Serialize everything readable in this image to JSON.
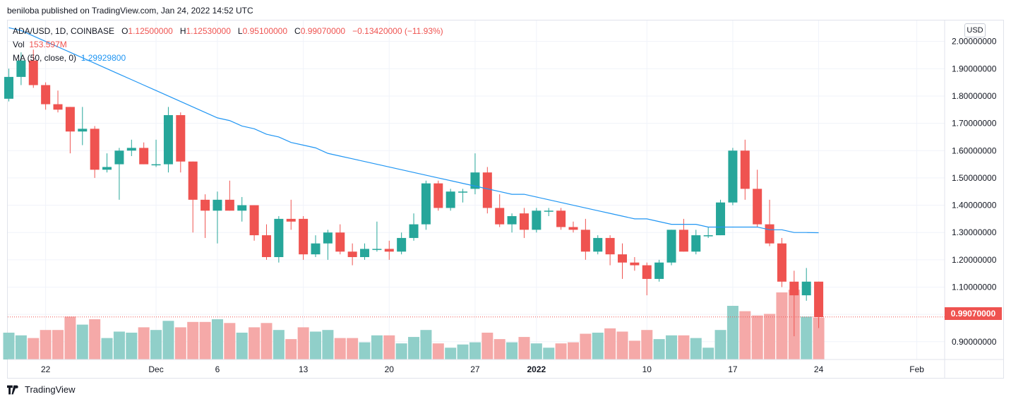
{
  "header": {
    "published": "beniloba published on TradingView.com, Jan 24, 2022 14:52 UTC"
  },
  "legend": {
    "symbol": "ADA/USD, 1D, COINBASE",
    "o_label": "O",
    "o_value": "1.12500000",
    "h_label": "H",
    "h_value": "1.12530000",
    "l_label": "L",
    "l_value": "0.95100000",
    "c_label": "C",
    "c_value": "0.99070000",
    "change": "−0.13420000 (−11.93%)",
    "vol_label": "Vol",
    "vol_value": "153.597M",
    "ma_label": "MA (50, close, 0)",
    "ma_value": "1.29929800"
  },
  "currency_button": "USD",
  "last_price_tag": "0.99070000",
  "footer": {
    "brand": "TradingView"
  },
  "colors": {
    "up": "#26a69a",
    "down": "#ef5350",
    "vol_up": "#90cfc9",
    "vol_down": "#f5a9a8",
    "ma": "#2196f3"
  },
  "chart_data": {
    "type": "candlestick",
    "symbol": "ADA/USD",
    "interval": "1D",
    "exchange": "COINBASE",
    "y_ticks": [
      0.9,
      1.0,
      1.1,
      1.2,
      1.3,
      1.4,
      1.5,
      1.6,
      1.7,
      1.8,
      1.9,
      2.0
    ],
    "y_tick_labels": [
      "0.90000000",
      "1.10000000",
      "1.20000000",
      "1.30000000",
      "1.40000000",
      "1.50000000",
      "1.60000000",
      "1.70000000",
      "1.80000000",
      "1.90000000",
      "2.00000000"
    ],
    "ylim": [
      0.8,
      2.05
    ],
    "last_close": 0.9907,
    "x_tick_labels": [
      {
        "label": "22",
        "index": 3
      },
      {
        "label": "Dec",
        "index": 12
      },
      {
        "label": "6",
        "index": 17
      },
      {
        "label": "13",
        "index": 24
      },
      {
        "label": "20",
        "index": 31
      },
      {
        "label": "27",
        "index": 38
      },
      {
        "label": "2022",
        "index": 43
      },
      {
        "label": "10",
        "index": 52
      },
      {
        "label": "17",
        "index": 59
      },
      {
        "label": "24",
        "index": 66
      },
      {
        "label": "Feb",
        "index": 74
      }
    ],
    "candles": [
      {
        "o": 1.79,
        "h": 1.9,
        "l": 1.78,
        "c": 1.87,
        "v": 0.5
      },
      {
        "o": 1.87,
        "h": 1.96,
        "l": 1.84,
        "c": 1.93,
        "v": 0.45
      },
      {
        "o": 1.93,
        "h": 1.97,
        "l": 1.83,
        "c": 1.84,
        "v": 0.4
      },
      {
        "o": 1.84,
        "h": 1.85,
        "l": 1.75,
        "c": 1.77,
        "v": 0.55
      },
      {
        "o": 1.77,
        "h": 1.82,
        "l": 1.74,
        "c": 1.75,
        "v": 0.55
      },
      {
        "o": 1.76,
        "h": 1.76,
        "l": 1.59,
        "c": 1.67,
        "v": 0.8
      },
      {
        "o": 1.67,
        "h": 1.76,
        "l": 1.62,
        "c": 1.68,
        "v": 0.65
      },
      {
        "o": 1.68,
        "h": 1.69,
        "l": 1.5,
        "c": 1.53,
        "v": 0.75
      },
      {
        "o": 1.53,
        "h": 1.59,
        "l": 1.52,
        "c": 1.54,
        "v": 0.4
      },
      {
        "o": 1.55,
        "h": 1.61,
        "l": 1.42,
        "c": 1.6,
        "v": 0.52
      },
      {
        "o": 1.6,
        "h": 1.64,
        "l": 1.58,
        "c": 1.61,
        "v": 0.5
      },
      {
        "o": 1.61,
        "h": 1.63,
        "l": 1.55,
        "c": 1.55,
        "v": 0.6
      },
      {
        "o": 1.55,
        "h": 1.64,
        "l": 1.54,
        "c": 1.55,
        "v": 0.55
      },
      {
        "o": 1.55,
        "h": 1.76,
        "l": 1.52,
        "c": 1.73,
        "v": 0.72
      },
      {
        "o": 1.73,
        "h": 1.74,
        "l": 1.52,
        "c": 1.56,
        "v": 0.6
      },
      {
        "o": 1.56,
        "h": 1.56,
        "l": 1.3,
        "c": 1.42,
        "v": 0.7
      },
      {
        "o": 1.42,
        "h": 1.44,
        "l": 1.28,
        "c": 1.38,
        "v": 0.7
      },
      {
        "o": 1.38,
        "h": 1.45,
        "l": 1.26,
        "c": 1.42,
        "v": 0.75
      },
      {
        "o": 1.42,
        "h": 1.49,
        "l": 1.38,
        "c": 1.38,
        "v": 0.68
      },
      {
        "o": 1.38,
        "h": 1.43,
        "l": 1.34,
        "c": 1.4,
        "v": 0.5
      },
      {
        "o": 1.4,
        "h": 1.4,
        "l": 1.27,
        "c": 1.29,
        "v": 0.6
      },
      {
        "o": 1.29,
        "h": 1.33,
        "l": 1.2,
        "c": 1.21,
        "v": 0.68
      },
      {
        "o": 1.21,
        "h": 1.36,
        "l": 1.19,
        "c": 1.35,
        "v": 0.55
      },
      {
        "o": 1.35,
        "h": 1.42,
        "l": 1.31,
        "c": 1.34,
        "v": 0.38
      },
      {
        "o": 1.35,
        "h": 1.36,
        "l": 1.2,
        "c": 1.22,
        "v": 0.6
      },
      {
        "o": 1.22,
        "h": 1.29,
        "l": 1.21,
        "c": 1.26,
        "v": 0.52
      },
      {
        "o": 1.26,
        "h": 1.31,
        "l": 1.2,
        "c": 1.3,
        "v": 0.55
      },
      {
        "o": 1.3,
        "h": 1.33,
        "l": 1.22,
        "c": 1.23,
        "v": 0.4
      },
      {
        "o": 1.23,
        "h": 1.26,
        "l": 1.18,
        "c": 1.21,
        "v": 0.4
      },
      {
        "o": 1.21,
        "h": 1.26,
        "l": 1.2,
        "c": 1.24,
        "v": 0.32
      },
      {
        "o": 1.24,
        "h": 1.34,
        "l": 1.23,
        "c": 1.24,
        "v": 0.45
      },
      {
        "o": 1.24,
        "h": 1.27,
        "l": 1.2,
        "c": 1.23,
        "v": 0.45
      },
      {
        "o": 1.23,
        "h": 1.3,
        "l": 1.22,
        "c": 1.28,
        "v": 0.3
      },
      {
        "o": 1.28,
        "h": 1.37,
        "l": 1.27,
        "c": 1.33,
        "v": 0.42
      },
      {
        "o": 1.33,
        "h": 1.49,
        "l": 1.31,
        "c": 1.48,
        "v": 0.55
      },
      {
        "o": 1.48,
        "h": 1.49,
        "l": 1.38,
        "c": 1.39,
        "v": 0.3
      },
      {
        "o": 1.39,
        "h": 1.46,
        "l": 1.38,
        "c": 1.45,
        "v": 0.22
      },
      {
        "o": 1.45,
        "h": 1.46,
        "l": 1.41,
        "c": 1.45,
        "v": 0.28
      },
      {
        "o": 1.46,
        "h": 1.59,
        "l": 1.44,
        "c": 1.52,
        "v": 0.32
      },
      {
        "o": 1.52,
        "h": 1.54,
        "l": 1.37,
        "c": 1.39,
        "v": 0.5
      },
      {
        "o": 1.39,
        "h": 1.44,
        "l": 1.32,
        "c": 1.33,
        "v": 0.38
      },
      {
        "o": 1.33,
        "h": 1.37,
        "l": 1.3,
        "c": 1.36,
        "v": 0.32
      },
      {
        "o": 1.37,
        "h": 1.39,
        "l": 1.28,
        "c": 1.31,
        "v": 0.42
      },
      {
        "o": 1.31,
        "h": 1.39,
        "l": 1.3,
        "c": 1.38,
        "v": 0.3
      },
      {
        "o": 1.38,
        "h": 1.39,
        "l": 1.36,
        "c": 1.38,
        "v": 0.22
      },
      {
        "o": 1.38,
        "h": 1.39,
        "l": 1.31,
        "c": 1.32,
        "v": 0.3
      },
      {
        "o": 1.32,
        "h": 1.34,
        "l": 1.3,
        "c": 1.31,
        "v": 0.32
      },
      {
        "o": 1.31,
        "h": 1.35,
        "l": 1.2,
        "c": 1.23,
        "v": 0.48
      },
      {
        "o": 1.23,
        "h": 1.29,
        "l": 1.22,
        "c": 1.28,
        "v": 0.5
      },
      {
        "o": 1.28,
        "h": 1.29,
        "l": 1.18,
        "c": 1.22,
        "v": 0.58
      },
      {
        "o": 1.22,
        "h": 1.26,
        "l": 1.13,
        "c": 1.19,
        "v": 0.52
      },
      {
        "o": 1.19,
        "h": 1.21,
        "l": 1.16,
        "c": 1.18,
        "v": 0.35
      },
      {
        "o": 1.18,
        "h": 1.19,
        "l": 1.07,
        "c": 1.13,
        "v": 0.55
      },
      {
        "o": 1.13,
        "h": 1.2,
        "l": 1.12,
        "c": 1.19,
        "v": 0.38
      },
      {
        "o": 1.19,
        "h": 1.31,
        "l": 1.18,
        "c": 1.31,
        "v": 0.45
      },
      {
        "o": 1.31,
        "h": 1.35,
        "l": 1.23,
        "c": 1.23,
        "v": 0.45
      },
      {
        "o": 1.23,
        "h": 1.31,
        "l": 1.22,
        "c": 1.29,
        "v": 0.4
      },
      {
        "o": 1.29,
        "h": 1.32,
        "l": 1.28,
        "c": 1.29,
        "v": 0.22
      },
      {
        "o": 1.29,
        "h": 1.42,
        "l": 1.29,
        "c": 1.41,
        "v": 0.55
      },
      {
        "o": 1.41,
        "h": 1.61,
        "l": 1.4,
        "c": 1.6,
        "v": 1.0
      },
      {
        "o": 1.6,
        "h": 1.64,
        "l": 1.42,
        "c": 1.46,
        "v": 0.9
      },
      {
        "o": 1.46,
        "h": 1.53,
        "l": 1.32,
        "c": 1.33,
        "v": 0.82
      },
      {
        "o": 1.33,
        "h": 1.42,
        "l": 1.25,
        "c": 1.26,
        "v": 0.85
      },
      {
        "o": 1.26,
        "h": 1.28,
        "l": 1.1,
        "c": 1.12,
        "v": 1.25
      },
      {
        "o": 1.12,
        "h": 1.16,
        "l": 0.92,
        "c": 1.07,
        "v": 1.3
      },
      {
        "o": 1.07,
        "h": 1.17,
        "l": 1.05,
        "c": 1.12,
        "v": 0.8
      },
      {
        "o": 1.12,
        "h": 1.12,
        "l": 0.95,
        "c": 0.99,
        "v": 0.78
      }
    ],
    "ma": [
      2.05,
      2.04,
      2.02,
      2.0,
      1.98,
      1.96,
      1.94,
      1.92,
      1.9,
      1.88,
      1.86,
      1.84,
      1.82,
      1.8,
      1.78,
      1.76,
      1.74,
      1.72,
      1.71,
      1.69,
      1.68,
      1.66,
      1.65,
      1.63,
      1.62,
      1.61,
      1.59,
      1.58,
      1.57,
      1.56,
      1.55,
      1.54,
      1.53,
      1.52,
      1.51,
      1.5,
      1.49,
      1.48,
      1.47,
      1.46,
      1.45,
      1.44,
      1.44,
      1.43,
      1.42,
      1.41,
      1.4,
      1.39,
      1.38,
      1.37,
      1.36,
      1.35,
      1.35,
      1.34,
      1.33,
      1.33,
      1.33,
      1.32,
      1.32,
      1.32,
      1.32,
      1.32,
      1.31,
      1.31,
      1.3,
      1.3,
      1.299298
    ]
  }
}
